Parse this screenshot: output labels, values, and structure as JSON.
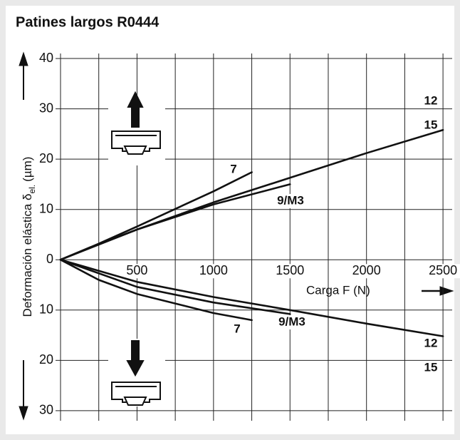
{
  "chart_data": {
    "type": "line",
    "title": "Patines largos R0444",
    "ylabel": "Deformación elástica δ",
    "ylabel_sub": "el.",
    "ylabel_unit": "(µm)",
    "xlabel": "Carga F (N)",
    "xlim": [
      0,
      2560
    ],
    "ylim": [
      -32,
      41
    ],
    "xticks": [
      500,
      1000,
      1500,
      2000,
      2500
    ],
    "xminor": [
      0,
      250,
      750,
      1250,
      1750,
      2250
    ],
    "yticks": [
      40,
      30,
      20,
      10,
      0,
      {
        "value": -10,
        "label": "10"
      },
      {
        "value": -20,
        "label": "20"
      },
      {
        "value": -30,
        "label": "30"
      }
    ],
    "grid": true,
    "series": [
      {
        "labels": [
          "7"
        ],
        "color": "#111111",
        "x": [
          0,
          250,
          500,
          1000,
          1250
        ],
        "values": [
          0,
          3.2,
          6.6,
          13.6,
          17.4
        ]
      },
      {
        "labels": [
          "9/M3"
        ],
        "color": "#111111",
        "x": [
          0,
          250,
          500,
          1000,
          1500
        ],
        "values": [
          0,
          3.1,
          6.0,
          11.0,
          15.0
        ]
      },
      {
        "labels": [
          "12",
          "15"
        ],
        "color": "#111111",
        "x": [
          0,
          500,
          1000,
          1500,
          2000,
          2500
        ],
        "values": [
          0,
          6.0,
          11.4,
          16.3,
          21.2,
          25.8
        ]
      },
      {
        "labels": [
          "7"
        ],
        "color": "#111111",
        "x": [
          0,
          250,
          500,
          1000,
          1250
        ],
        "values": [
          0,
          -4.0,
          -6.8,
          -10.6,
          -12.0
        ]
      },
      {
        "labels": [
          "9/M3"
        ],
        "color": "#111111",
        "x": [
          0,
          500,
          1000,
          1500
        ],
        "values": [
          0,
          -5.4,
          -8.5,
          -10.8
        ]
      },
      {
        "labels": [
          "12",
          "15"
        ],
        "color": "#111111",
        "x": [
          0,
          500,
          1000,
          1500,
          2000,
          2500
        ],
        "values": [
          0,
          -4.4,
          -7.4,
          -10.0,
          -12.7,
          -15.2
        ]
      }
    ]
  }
}
